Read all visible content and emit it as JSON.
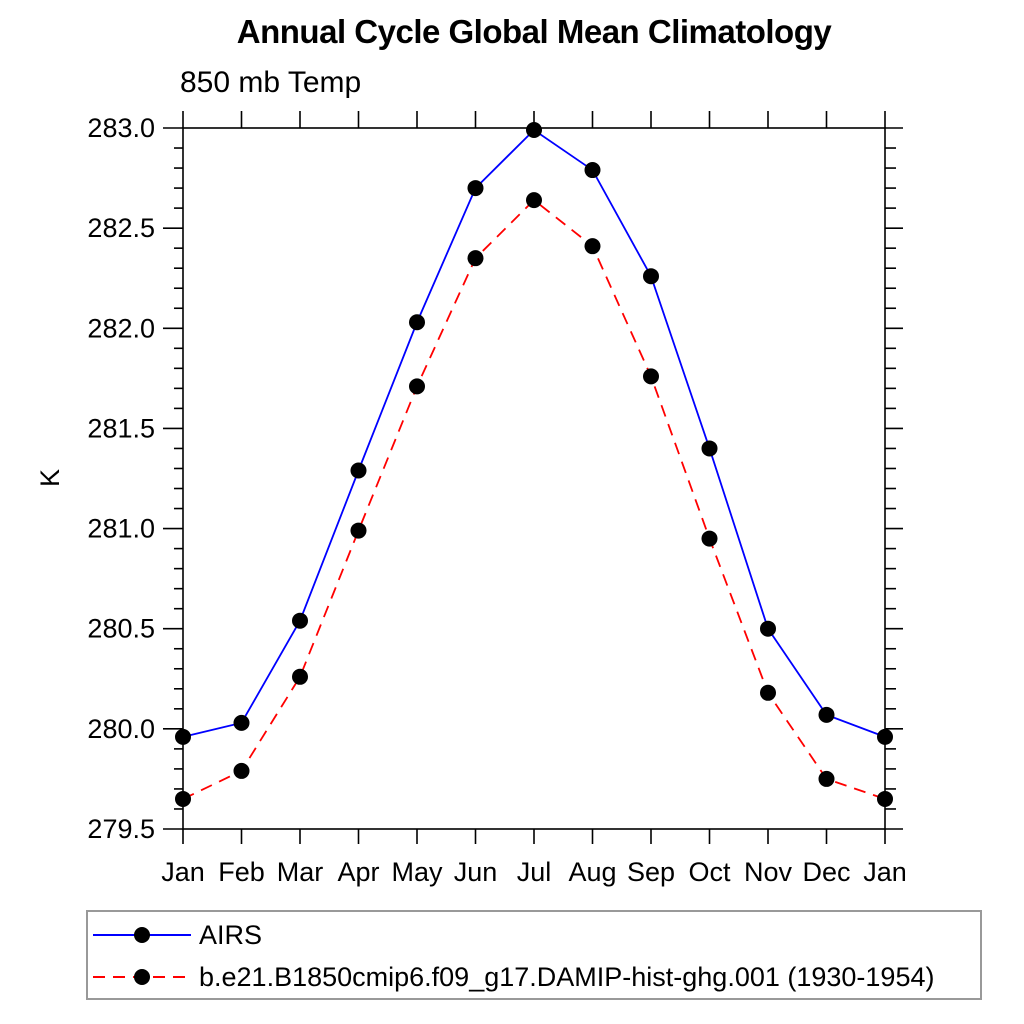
{
  "page": {
    "background_color": "#ffffff"
  },
  "chart_data": {
    "type": "line",
    "title": "Annual Cycle Global Mean Climatology",
    "subtitle": "850 mb Temp",
    "ylabel": "K",
    "xlabel": "",
    "categories": [
      "Jan",
      "Feb",
      "Mar",
      "Apr",
      "May",
      "Jun",
      "Jul",
      "Aug",
      "Sep",
      "Oct",
      "Nov",
      "Dec",
      "Jan"
    ],
    "ylim": [
      279.5,
      283.0
    ],
    "y_major_tick_step": 0.5,
    "y_minor_tick_step": 0.1,
    "grid": false,
    "legend_position": "bottom-left-box",
    "axis_color": "#000000",
    "legend_border_color": "#999999",
    "marker": {
      "shape": "filled-circle",
      "color": "#000000"
    },
    "series": [
      {
        "name": "AIRS",
        "color": "#0000ff",
        "line_style": "solid",
        "values": [
          279.96,
          280.03,
          280.54,
          281.29,
          282.03,
          282.7,
          282.99,
          282.79,
          282.26,
          281.4,
          280.5,
          280.07,
          279.96
        ]
      },
      {
        "name": "b.e21.B1850cmip6.f09_g17.DAMIP-hist-ghg.001 (1930-1954)",
        "color": "#ff0000",
        "line_style": "dashed",
        "values": [
          279.65,
          279.79,
          280.26,
          280.99,
          281.71,
          282.35,
          282.64,
          282.41,
          281.76,
          280.95,
          280.18,
          279.75,
          279.65
        ]
      }
    ]
  }
}
